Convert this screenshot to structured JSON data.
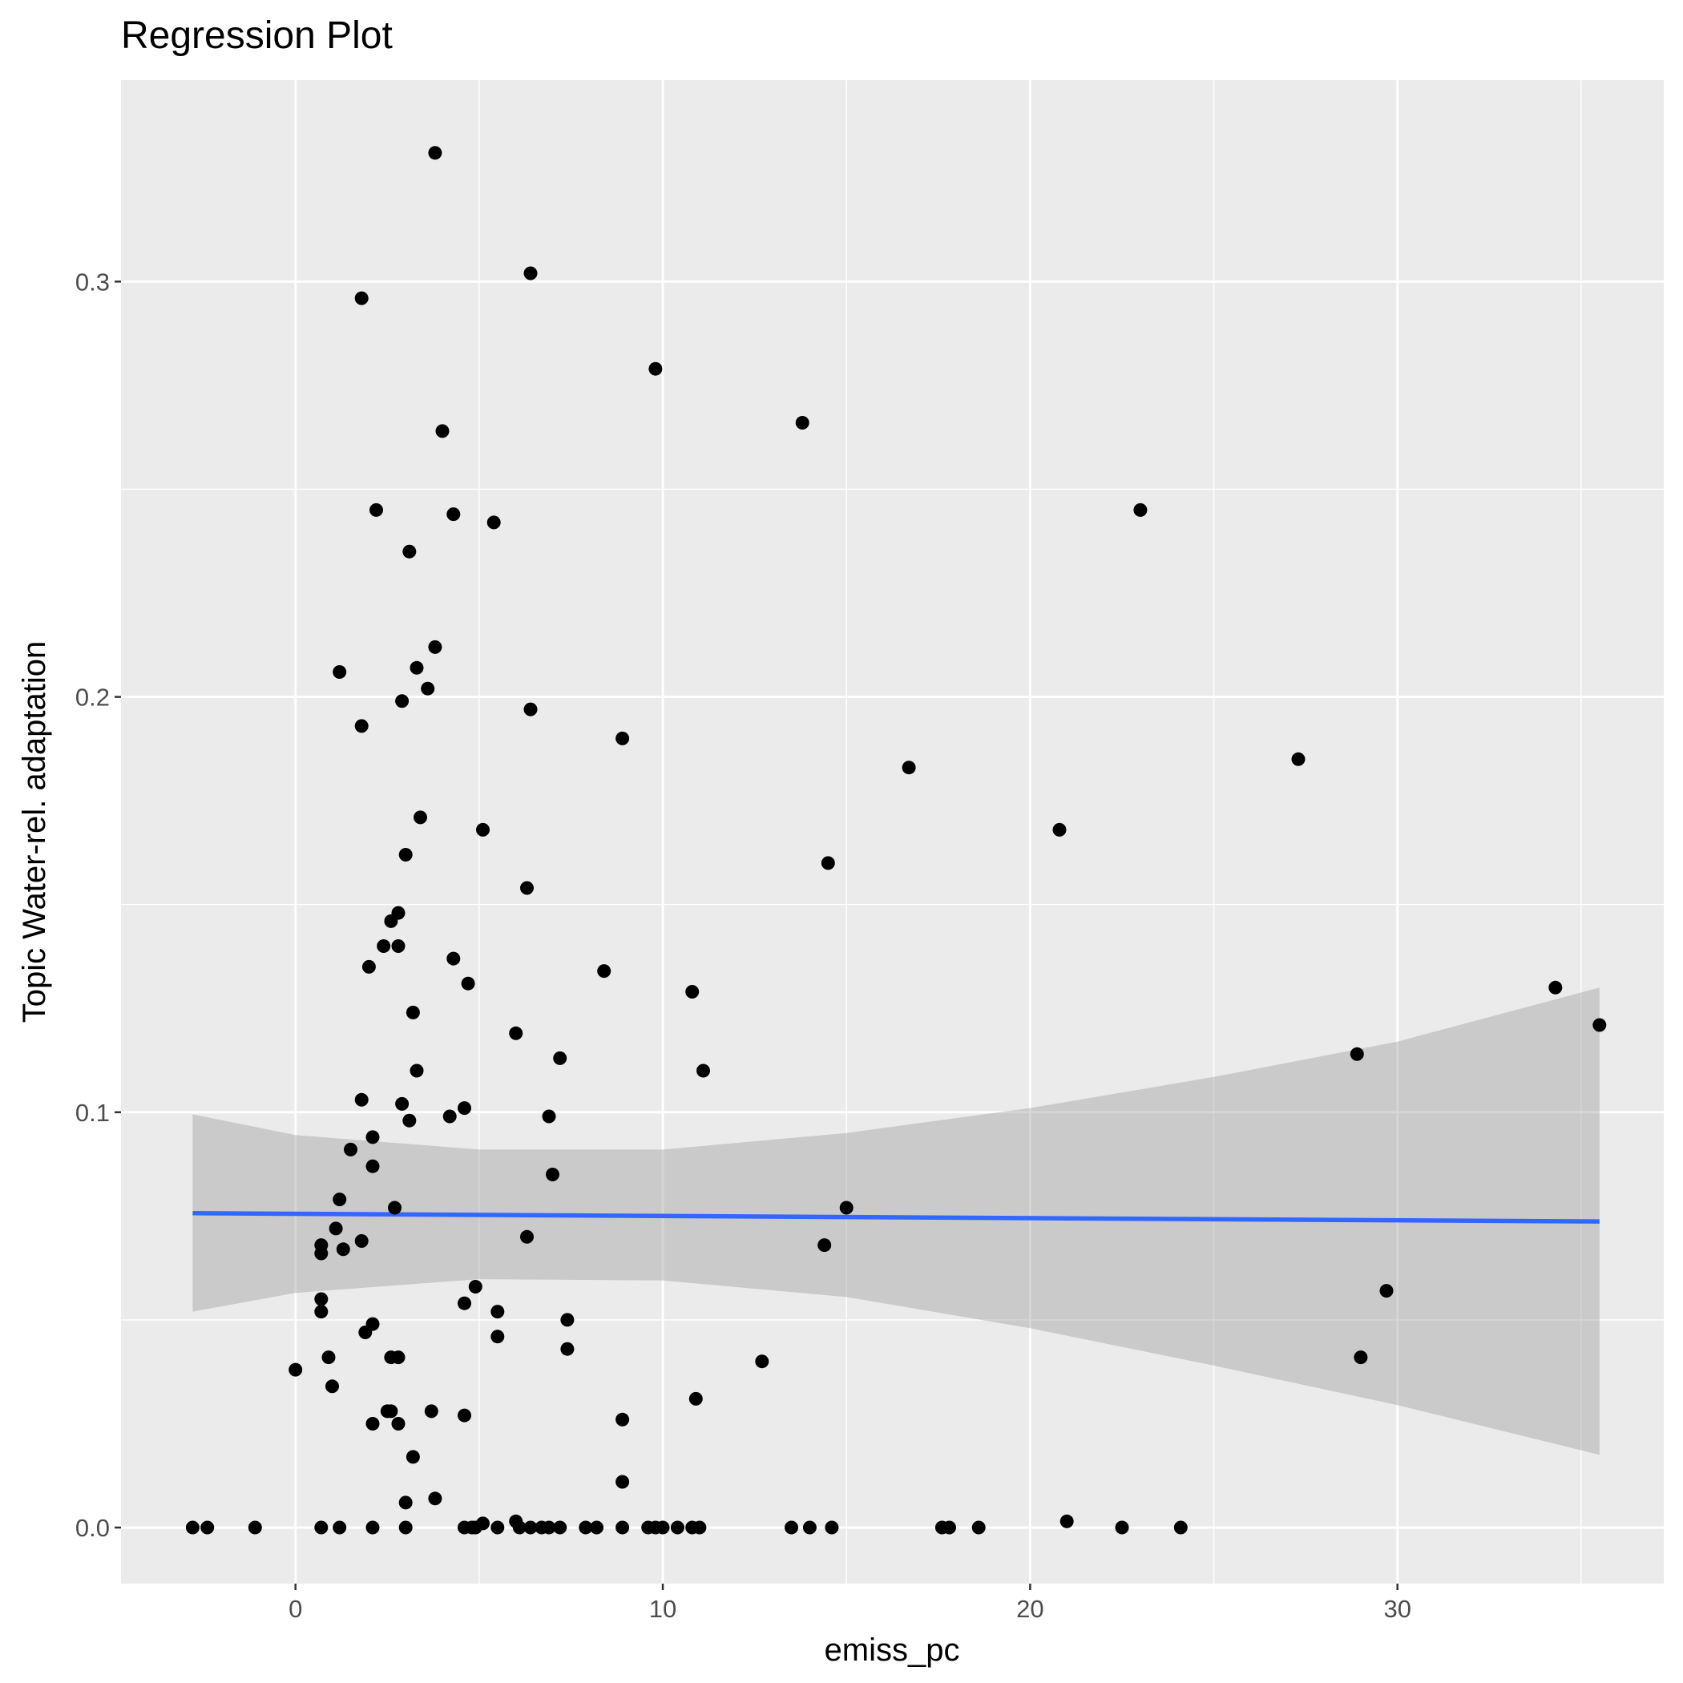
{
  "chart_data": {
    "type": "scatter",
    "title": "Regression Plot",
    "xlabel": "emiss_pc",
    "ylabel": "Topic Water-rel. adaptation",
    "xlim": [
      -4.75,
      37.25
    ],
    "ylim": [
      -0.0135,
      0.3485
    ],
    "x_ticks": [
      0,
      10,
      20,
      30
    ],
    "x_tick_labels": [
      "0",
      "10",
      "20",
      "30"
    ],
    "y_ticks": [
      0.0,
      0.1,
      0.2,
      0.3
    ],
    "y_tick_labels": [
      "0.0",
      "0.1",
      "0.2",
      "0.3"
    ],
    "grid": true,
    "colors": {
      "panel": "#ebebeb",
      "grid": "#ffffff",
      "points": "#000000",
      "fit_line": "#3366ff",
      "ribbon": "#999999"
    },
    "points": [
      {
        "x": 3.8,
        "y": 0.331
      },
      {
        "x": 6.4,
        "y": 0.302
      },
      {
        "x": 1.8,
        "y": 0.296
      },
      {
        "x": 9.8,
        "y": 0.279
      },
      {
        "x": 13.8,
        "y": 0.266
      },
      {
        "x": 4.0,
        "y": 0.264
      },
      {
        "x": 2.2,
        "y": 0.245
      },
      {
        "x": 4.3,
        "y": 0.244
      },
      {
        "x": 5.4,
        "y": 0.242
      },
      {
        "x": 23.0,
        "y": 0.245
      },
      {
        "x": 3.1,
        "y": 0.235
      },
      {
        "x": 3.8,
        "y": 0.212
      },
      {
        "x": 1.2,
        "y": 0.206
      },
      {
        "x": 3.3,
        "y": 0.207
      },
      {
        "x": 3.6,
        "y": 0.202
      },
      {
        "x": 2.9,
        "y": 0.199
      },
      {
        "x": 6.4,
        "y": 0.197
      },
      {
        "x": 1.8,
        "y": 0.193
      },
      {
        "x": 8.9,
        "y": 0.19
      },
      {
        "x": 16.7,
        "y": 0.183
      },
      {
        "x": 27.3,
        "y": 0.185
      },
      {
        "x": 3.4,
        "y": 0.171
      },
      {
        "x": 5.1,
        "y": 0.168
      },
      {
        "x": 20.8,
        "y": 0.168
      },
      {
        "x": 3.0,
        "y": 0.162
      },
      {
        "x": 14.5,
        "y": 0.16
      },
      {
        "x": 6.3,
        "y": 0.154
      },
      {
        "x": 2.8,
        "y": 0.148
      },
      {
        "x": 2.6,
        "y": 0.146
      },
      {
        "x": 2.4,
        "y": 0.14
      },
      {
        "x": 2.8,
        "y": 0.14
      },
      {
        "x": 4.3,
        "y": 0.137
      },
      {
        "x": 2.0,
        "y": 0.135
      },
      {
        "x": 8.4,
        "y": 0.134
      },
      {
        "x": 4.7,
        "y": 0.131
      },
      {
        "x": 10.8,
        "y": 0.129
      },
      {
        "x": 34.3,
        "y": 0.13
      },
      {
        "x": 35.5,
        "y": 0.121
      },
      {
        "x": 3.2,
        "y": 0.124
      },
      {
        "x": 6.0,
        "y": 0.119
      },
      {
        "x": 7.2,
        "y": 0.113
      },
      {
        "x": 28.9,
        "y": 0.114
      },
      {
        "x": 3.3,
        "y": 0.11
      },
      {
        "x": 11.1,
        "y": 0.11
      },
      {
        "x": 1.8,
        "y": 0.103
      },
      {
        "x": 2.9,
        "y": 0.102
      },
      {
        "x": 4.6,
        "y": 0.101
      },
      {
        "x": 4.2,
        "y": 0.099
      },
      {
        "x": 3.1,
        "y": 0.098
      },
      {
        "x": 6.9,
        "y": 0.099
      },
      {
        "x": 2.1,
        "y": 0.094
      },
      {
        "x": 1.5,
        "y": 0.091
      },
      {
        "x": 2.1,
        "y": 0.087
      },
      {
        "x": 7.0,
        "y": 0.085
      },
      {
        "x": 1.2,
        "y": 0.079
      },
      {
        "x": 2.7,
        "y": 0.077
      },
      {
        "x": 15.0,
        "y": 0.077
      },
      {
        "x": 1.1,
        "y": 0.072
      },
      {
        "x": 6.3,
        "y": 0.07
      },
      {
        "x": 0.7,
        "y": 0.068
      },
      {
        "x": 1.3,
        "y": 0.067
      },
      {
        "x": 1.8,
        "y": 0.069
      },
      {
        "x": 0.7,
        "y": 0.066
      },
      {
        "x": 14.4,
        "y": 0.068
      },
      {
        "x": 4.9,
        "y": 0.058
      },
      {
        "x": 29.7,
        "y": 0.057
      },
      {
        "x": 0.7,
        "y": 0.055
      },
      {
        "x": 4.6,
        "y": 0.054
      },
      {
        "x": 0.7,
        "y": 0.052
      },
      {
        "x": 5.5,
        "y": 0.052
      },
      {
        "x": 7.4,
        "y": 0.05
      },
      {
        "x": 2.1,
        "y": 0.049
      },
      {
        "x": 1.9,
        "y": 0.047
      },
      {
        "x": 5.5,
        "y": 0.046
      },
      {
        "x": 7.4,
        "y": 0.043
      },
      {
        "x": 0.9,
        "y": 0.041
      },
      {
        "x": 2.6,
        "y": 0.041
      },
      {
        "x": 2.8,
        "y": 0.041
      },
      {
        "x": 29.0,
        "y": 0.041
      },
      {
        "x": 12.7,
        "y": 0.04
      },
      {
        "x": 0.0,
        "y": 0.038
      },
      {
        "x": 1.0,
        "y": 0.034
      },
      {
        "x": 10.9,
        "y": 0.031
      },
      {
        "x": 2.5,
        "y": 0.028
      },
      {
        "x": 2.6,
        "y": 0.028
      },
      {
        "x": 3.7,
        "y": 0.028
      },
      {
        "x": 4.6,
        "y": 0.027
      },
      {
        "x": 2.1,
        "y": 0.025
      },
      {
        "x": 2.8,
        "y": 0.025
      },
      {
        "x": 8.9,
        "y": 0.026
      },
      {
        "x": 3.2,
        "y": 0.017
      },
      {
        "x": 8.9,
        "y": 0.011
      },
      {
        "x": 3.8,
        "y": 0.007
      },
      {
        "x": 3.0,
        "y": 0.006
      },
      {
        "x": 21.0,
        "y": 0.0015
      },
      {
        "x": 5.1,
        "y": 0.001
      },
      {
        "x": 6.0,
        "y": 0.0015
      },
      {
        "x": -2.8,
        "y": 0.0
      },
      {
        "x": -2.4,
        "y": 0.0
      },
      {
        "x": -1.1,
        "y": 0.0
      },
      {
        "x": 0.7,
        "y": 0.0
      },
      {
        "x": 1.2,
        "y": 0.0
      },
      {
        "x": 2.1,
        "y": 0.0
      },
      {
        "x": 3.0,
        "y": 0.0
      },
      {
        "x": 4.6,
        "y": 0.0
      },
      {
        "x": 4.8,
        "y": 0.0
      },
      {
        "x": 4.9,
        "y": 0.0
      },
      {
        "x": 5.5,
        "y": 0.0
      },
      {
        "x": 6.1,
        "y": 0.0
      },
      {
        "x": 6.4,
        "y": 0.0
      },
      {
        "x": 6.7,
        "y": 0.0
      },
      {
        "x": 6.9,
        "y": 0.0
      },
      {
        "x": 7.2,
        "y": 0.0
      },
      {
        "x": 7.9,
        "y": 0.0
      },
      {
        "x": 8.2,
        "y": 0.0
      },
      {
        "x": 8.9,
        "y": 0.0
      },
      {
        "x": 9.6,
        "y": 0.0
      },
      {
        "x": 9.8,
        "y": 0.0
      },
      {
        "x": 10.0,
        "y": 0.0
      },
      {
        "x": 10.4,
        "y": 0.0
      },
      {
        "x": 10.8,
        "y": 0.0
      },
      {
        "x": 11.0,
        "y": 0.0
      },
      {
        "x": 13.5,
        "y": 0.0
      },
      {
        "x": 14.0,
        "y": 0.0
      },
      {
        "x": 14.6,
        "y": 0.0
      },
      {
        "x": 17.6,
        "y": 0.0
      },
      {
        "x": 17.8,
        "y": 0.0
      },
      {
        "x": 18.6,
        "y": 0.0
      },
      {
        "x": 22.5,
        "y": 0.0
      },
      {
        "x": 24.1,
        "y": 0.0
      }
    ],
    "fit": {
      "x": [
        -2.8,
        35.5
      ],
      "y": [
        0.0757,
        0.0737
      ]
    },
    "ribbon": {
      "x": [
        -2.8,
        0,
        5,
        10,
        15,
        20,
        25,
        30,
        35.5
      ],
      "lower": [
        0.052,
        0.0565,
        0.0598,
        0.0595,
        0.0555,
        0.048,
        0.039,
        0.0295,
        0.0175
      ],
      "upper": [
        0.0995,
        0.0945,
        0.091,
        0.091,
        0.095,
        0.101,
        0.1085,
        0.117,
        0.13
      ]
    }
  }
}
